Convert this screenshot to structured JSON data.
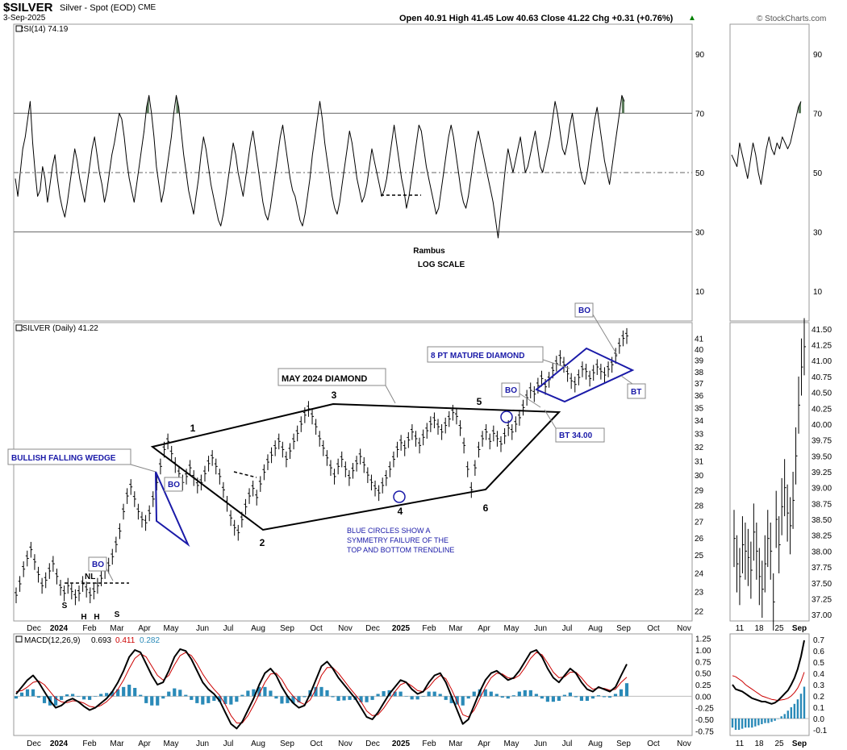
{
  "header": {
    "symbol": "$SILVER",
    "description": "Silver - Spot (EOD)",
    "exchange": "CME",
    "date": "3-Sep-2025",
    "ohlc": "Open 40.91  High 41.45  Low 40.63  Close 41.22  Chg +0.31 (+0.76%)",
    "ohlc_arrow": "▲",
    "watermark": "© StockCharts.com"
  },
  "colors": {
    "price": "#000000",
    "annotation_blue": "#1a1aa8",
    "rsi_fill": "#5a7a5a",
    "macd_line": "#000000",
    "signal_line": "#cc0000",
    "histogram": "#2a8ab8",
    "grid": "#888888"
  },
  "chart_data": [
    {
      "type": "line",
      "panel": "rsi",
      "title": "RSI(14) 74.19",
      "y_ticks": [
        "90",
        "70",
        "50",
        "30",
        "10"
      ],
      "ylim": [
        0,
        100
      ],
      "reference_lines": [
        70,
        50,
        30
      ],
      "notes": [
        "Rambus",
        "LOG SCALE"
      ],
      "series": [
        {
          "values": [
            48,
            42,
            50,
            58,
            62,
            68,
            74,
            60,
            50,
            42,
            44,
            52,
            48,
            40,
            46,
            52,
            56,
            48,
            42,
            38,
            35,
            40,
            46,
            52,
            58,
            54,
            48,
            44,
            40,
            46,
            52,
            58,
            62,
            56,
            50,
            46,
            40,
            44,
            50,
            56,
            60,
            65,
            70,
            68,
            62,
            54,
            48,
            44,
            40,
            46,
            52,
            58,
            64,
            72,
            76,
            70,
            62,
            52,
            46,
            40,
            44,
            50,
            56,
            62,
            70,
            76,
            72,
            64,
            56,
            50,
            44,
            40,
            36,
            42,
            48,
            56,
            62,
            58,
            52,
            46,
            42,
            38,
            34,
            32,
            36,
            42,
            48,
            54,
            60,
            56,
            50,
            46,
            42,
            48,
            54,
            60,
            64,
            58,
            52,
            46,
            40,
            36,
            34,
            38,
            44,
            50,
            56,
            62,
            66,
            60,
            54,
            48,
            44,
            42,
            38,
            34,
            32,
            36,
            42,
            48,
            56,
            62,
            68,
            74,
            68,
            60,
            54,
            48,
            42,
            38,
            36,
            40,
            46,
            52,
            58,
            64,
            60,
            54,
            48,
            44,
            40,
            42,
            46,
            52,
            58,
            54,
            50,
            46,
            42,
            44,
            48,
            54,
            60,
            66,
            60,
            54,
            48,
            44,
            38,
            42,
            48,
            54,
            60,
            66,
            64,
            58,
            52,
            48,
            44,
            40,
            36,
            38,
            44,
            50,
            56,
            62,
            66,
            62,
            56,
            50,
            44,
            40,
            38,
            42,
            48,
            54,
            60,
            64,
            60,
            56,
            52,
            48,
            44,
            40,
            34,
            28,
            36,
            44,
            52,
            58,
            54,
            50,
            54,
            58,
            62,
            56,
            50,
            52,
            56,
            60,
            64,
            58,
            52,
            50,
            54,
            58,
            62,
            68,
            74,
            70,
            64,
            58,
            56,
            60,
            66,
            70,
            64,
            58,
            52,
            48,
            46,
            50,
            56,
            62,
            68,
            72,
            66,
            60,
            54,
            50,
            46,
            52,
            58,
            64,
            70,
            76,
            74
          ]
        }
      ]
    },
    {
      "type": "line",
      "panel": "price",
      "title": "$SILVER (Daily) 41.22",
      "x_ticks": [
        "Dec",
        "2024",
        "Feb",
        "Mar",
        "Apr",
        "May",
        "Jun",
        "Jul",
        "Aug",
        "Sep",
        "Oct",
        "Nov",
        "Dec",
        "2025",
        "Feb",
        "Mar",
        "Apr",
        "May",
        "Jun",
        "Jul",
        "Aug",
        "Sep",
        "Oct",
        "Nov"
      ],
      "y_ticks": [
        "41",
        "40",
        "39",
        "38",
        "37",
        "36",
        "35",
        "34",
        "33",
        "32",
        "31",
        "30",
        "29",
        "28",
        "27",
        "26",
        "25",
        "24",
        "23",
        "22"
      ],
      "scale": "log",
      "ylim": [
        21.5,
        42.5
      ],
      "series": [
        {
          "name": "$SILVER",
          "values": [
            22.8,
            23.4,
            24.2,
            24.8,
            25.3,
            24.6,
            23.9,
            23.3,
            23.6,
            24.1,
            24.5,
            23.8,
            23.2,
            22.9,
            23.3,
            23.0,
            22.7,
            22.9,
            23.4,
            23.1,
            22.8,
            23.0,
            23.3,
            23.7,
            24.1,
            24.4,
            24.9,
            25.6,
            26.4,
            27.6,
            28.6,
            29.2,
            28.4,
            27.6,
            27.1,
            26.9,
            27.5,
            28.4,
            29.5,
            30.6,
            31.8,
            32.4,
            31.5,
            30.7,
            30.1,
            29.5,
            29.9,
            30.5,
            29.8,
            29.3,
            29.5,
            30.1,
            30.8,
            31.2,
            30.6,
            29.9,
            29.0,
            28.1,
            27.2,
            26.6,
            26.3,
            27.1,
            27.9,
            28.6,
            29.1,
            28.5,
            29.4,
            30.2,
            30.9,
            31.4,
            31.9,
            32.4,
            31.8,
            31.1,
            31.7,
            32.4,
            33.0,
            33.7,
            34.4,
            34.9,
            34.3,
            33.5,
            32.6,
            31.9,
            31.2,
            30.5,
            29.9,
            30.6,
            31.1,
            30.4,
            29.8,
            30.3,
            30.8,
            31.3,
            30.7,
            30.0,
            29.5,
            29.1,
            28.8,
            29.3,
            29.8,
            30.4,
            31.1,
            31.8,
            32.3,
            31.9,
            32.5,
            33.1,
            32.6,
            32.1,
            32.7,
            33.2,
            33.7,
            34.0,
            33.5,
            33.1,
            33.6,
            34.1,
            34.6,
            34.3,
            33.4,
            32.1,
            30.4,
            29.0,
            30.5,
            31.8,
            32.6,
            33.1,
            32.4,
            33.0,
            32.6,
            32.2,
            32.8,
            33.4,
            33.1,
            33.7,
            34.2,
            35.0,
            35.8,
            36.4,
            36.1,
            36.8,
            37.4,
            36.7,
            37.3,
            38.1,
            38.7,
            39.2,
            38.6,
            37.8,
            37.2,
            36.9,
            37.5,
            38.2,
            38.0,
            37.4,
            37.9,
            38.4,
            38.0,
            37.7,
            38.2,
            38.6,
            39.4,
            40.3,
            41.0,
            41.22
          ]
        }
      ]
    },
    {
      "type": "line",
      "panel": "macd",
      "title": "MACD(12,26,9)",
      "values_text": [
        "0.693",
        "0.411",
        "0.282"
      ],
      "y_ticks": [
        "1.25",
        "1.00",
        "0.75",
        "0.50",
        "0.25",
        "0.00",
        "-0.25",
        "-0.50",
        "-0.75"
      ],
      "ylim": [
        -0.85,
        1.35
      ],
      "series": [
        {
          "name": "macd",
          "values": [
            0.05,
            0.2,
            0.35,
            0.45,
            0.3,
            0.1,
            -0.1,
            -0.25,
            -0.2,
            -0.1,
            -0.05,
            -0.12,
            -0.22,
            -0.3,
            -0.25,
            -0.15,
            -0.05,
            0.1,
            0.3,
            0.55,
            0.85,
            1.0,
            0.95,
            0.7,
            0.45,
            0.25,
            0.3,
            0.55,
            0.85,
            1.02,
            0.98,
            0.8,
            0.55,
            0.3,
            0.15,
            0.05,
            -0.1,
            -0.35,
            -0.6,
            -0.7,
            -0.55,
            -0.3,
            -0.05,
            0.25,
            0.5,
            0.6,
            0.45,
            0.2,
            0.0,
            -0.15,
            -0.25,
            -0.2,
            0.05,
            0.35,
            0.65,
            0.75,
            0.6,
            0.4,
            0.25,
            0.1,
            -0.05,
            -0.25,
            -0.45,
            -0.5,
            -0.35,
            -0.15,
            0.05,
            0.2,
            0.35,
            0.3,
            0.15,
            0.05,
            0.1,
            0.3,
            0.45,
            0.5,
            0.3,
            0.0,
            -0.3,
            -0.6,
            -0.5,
            -0.2,
            0.1,
            0.35,
            0.5,
            0.55,
            0.45,
            0.35,
            0.4,
            0.55,
            0.75,
            0.95,
            1.0,
            0.85,
            0.6,
            0.4,
            0.3,
            0.45,
            0.6,
            0.5,
            0.3,
            0.15,
            0.1,
            0.2,
            0.15,
            0.1,
            0.2,
            0.45,
            0.693
          ]
        },
        {
          "name": "signal",
          "values": [
            0.1,
            0.12,
            0.2,
            0.3,
            0.33,
            0.25,
            0.1,
            -0.05,
            -0.12,
            -0.14,
            -0.1,
            -0.11,
            -0.15,
            -0.22,
            -0.24,
            -0.2,
            -0.12,
            0.0,
            0.15,
            0.35,
            0.6,
            0.82,
            0.92,
            0.85,
            0.65,
            0.45,
            0.35,
            0.45,
            0.68,
            0.88,
            0.95,
            0.88,
            0.7,
            0.48,
            0.3,
            0.15,
            0.02,
            -0.18,
            -0.42,
            -0.58,
            -0.58,
            -0.42,
            -0.2,
            0.05,
            0.3,
            0.48,
            0.5,
            0.36,
            0.15,
            0.0,
            -0.12,
            -0.18,
            -0.08,
            0.15,
            0.45,
            0.62,
            0.62,
            0.5,
            0.34,
            0.18,
            0.03,
            -0.12,
            -0.32,
            -0.42,
            -0.4,
            -0.26,
            -0.08,
            0.1,
            0.25,
            0.3,
            0.22,
            0.12,
            0.1,
            0.2,
            0.35,
            0.45,
            0.38,
            0.15,
            -0.12,
            -0.4,
            -0.45,
            -0.3,
            -0.05,
            0.2,
            0.4,
            0.5,
            0.48,
            0.4,
            0.38,
            0.45,
            0.62,
            0.82,
            0.95,
            0.9,
            0.72,
            0.52,
            0.4,
            0.42,
            0.52,
            0.52,
            0.4,
            0.25,
            0.15,
            0.18,
            0.17,
            0.13,
            0.15,
            0.3,
            0.411
          ]
        },
        {
          "name": "histogram",
          "values": [
            -0.05,
            0.08,
            0.15,
            0.15,
            -0.03,
            -0.15,
            -0.2,
            -0.2,
            -0.08,
            0.04,
            0.05,
            -0.01,
            -0.07,
            -0.08,
            -0.01,
            0.05,
            0.07,
            0.1,
            0.15,
            0.2,
            0.25,
            0.18,
            0.03,
            -0.15,
            -0.2,
            -0.2,
            -0.05,
            0.1,
            0.17,
            0.14,
            0.03,
            -0.08,
            -0.15,
            -0.18,
            -0.15,
            -0.1,
            -0.12,
            -0.17,
            -0.18,
            -0.12,
            0.03,
            0.12,
            0.15,
            0.2,
            0.2,
            0.12,
            -0.05,
            -0.16,
            -0.15,
            -0.15,
            -0.13,
            -0.02,
            0.13,
            0.2,
            0.2,
            0.13,
            -0.02,
            -0.1,
            -0.09,
            -0.08,
            -0.08,
            -0.13,
            -0.13,
            -0.08,
            0.05,
            0.11,
            0.13,
            0.1,
            0.1,
            0.0,
            -0.07,
            -0.07,
            0.0,
            0.1,
            0.1,
            0.05,
            -0.08,
            -0.15,
            -0.18,
            -0.2,
            -0.05,
            0.1,
            0.15,
            0.15,
            0.1,
            0.05,
            -0.03,
            -0.05,
            0.02,
            0.1,
            0.13,
            0.13,
            0.05,
            -0.05,
            -0.12,
            -0.12,
            -0.1,
            0.03,
            0.08,
            -0.02,
            -0.1,
            -0.1,
            -0.05,
            0.02,
            -0.02,
            -0.03,
            0.05,
            0.15,
            0.282
          ]
        }
      ]
    },
    {
      "type": "line",
      "panel": "rsi_zoom",
      "y_ticks": [
        "90",
        "70",
        "50",
        "30",
        "10"
      ],
      "ylim": [
        0,
        100
      ],
      "series": [
        {
          "values": [
            56,
            54,
            52,
            60,
            56,
            52,
            48,
            54,
            60,
            56,
            50,
            46,
            52,
            58,
            62,
            58,
            56,
            60,
            58,
            62,
            60,
            58,
            60,
            64,
            68,
            72,
            74
          ]
        }
      ]
    },
    {
      "type": "line",
      "panel": "price_zoom",
      "y_ticks": [
        "41.50",
        "41.25",
        "41.00",
        "40.75",
        "40.50",
        "40.25",
        "40.00",
        "39.75",
        "39.50",
        "39.25",
        "39.00",
        "38.75",
        "38.50",
        "38.25",
        "38.00",
        "37.75",
        "37.50",
        "37.25",
        "37.00"
      ],
      "x_ticks": [
        "11",
        "18",
        "25",
        "Sep"
      ],
      "ylim": [
        36.9,
        41.6
      ],
      "series": [
        {
          "values": [
            38.2,
            37.8,
            37.6,
            38.1,
            38.0,
            37.9,
            37.7,
            38.3,
            38.0,
            37.6,
            37.4,
            37.8,
            38.2,
            38.0,
            37.2,
            38.5,
            38.1,
            38.7,
            39.0,
            38.6,
            38.4,
            38.8,
            39.5,
            40.3,
            40.9,
            41.22
          ]
        }
      ]
    },
    {
      "type": "line",
      "panel": "macd_zoom",
      "y_ticks": [
        "0.7",
        "0.6",
        "0.5",
        "0.4",
        "0.3",
        "0.2",
        "0.1",
        "0.0",
        "-0.1"
      ],
      "ylim": [
        -0.15,
        0.75
      ],
      "series": [
        {
          "name": "macd",
          "values": [
            0.3,
            0.26,
            0.25,
            0.24,
            0.22,
            0.2,
            0.18,
            0.17,
            0.16,
            0.15,
            0.15,
            0.14,
            0.13,
            0.14,
            0.16,
            0.19,
            0.22,
            0.25,
            0.3,
            0.36,
            0.44,
            0.55,
            0.693
          ]
        },
        {
          "name": "signal",
          "values": [
            0.38,
            0.37,
            0.35,
            0.33,
            0.3,
            0.28,
            0.26,
            0.24,
            0.22,
            0.2,
            0.19,
            0.18,
            0.17,
            0.165,
            0.16,
            0.165,
            0.17,
            0.18,
            0.2,
            0.23,
            0.27,
            0.33,
            0.411
          ]
        },
        {
          "name": "histogram",
          "values": [
            -0.08,
            -0.1,
            -0.1,
            -0.09,
            -0.08,
            -0.08,
            -0.08,
            -0.07,
            -0.06,
            -0.05,
            -0.04,
            -0.04,
            -0.03,
            -0.02,
            0.0,
            0.02,
            0.04,
            0.07,
            0.1,
            0.13,
            0.17,
            0.22,
            0.282
          ]
        }
      ]
    }
  ],
  "annotations": {
    "bullish_falling_wedge": "BULLISH FALLING WEDGE",
    "may_2024_diamond": "MAY 2024 DIAMOND",
    "mature_diamond": "8 PT MATURE DIAMOND",
    "bo": "BO",
    "bt": "BT",
    "bt_value": "BT 34.00",
    "nl": "NL",
    "s": "S",
    "h": "H",
    "points": [
      "1",
      "2",
      "3",
      "4",
      "5",
      "6"
    ],
    "blue_circles_note": [
      "BLUE CIRCLES SHOW A",
      "SYMMETRY FAILURE OF THE",
      "TOP AND BOTTOM TRENDLINE"
    ]
  }
}
